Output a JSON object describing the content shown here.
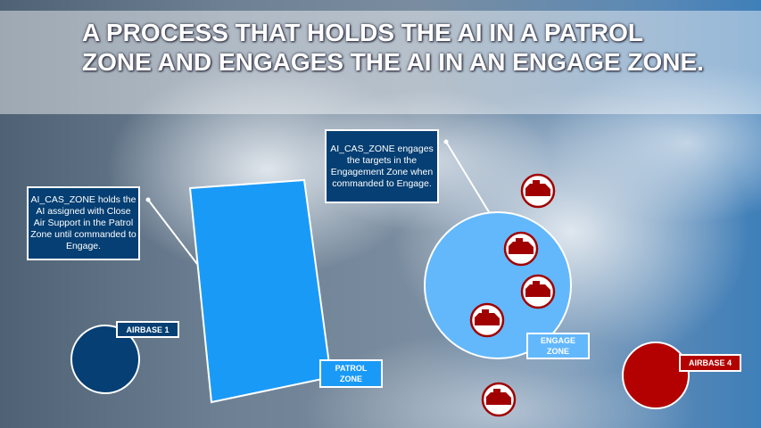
{
  "title": "A PROCESS THAT HOLDS THE AI IN A PATROL ZONE AND ENGAGES THE AI IN AN ENGAGE ZONE.",
  "callouts": {
    "patrol": "AI_CAS_ZONE holds the AI assigned with Close Air Support in the Patrol Zone until commanded to Engage.",
    "engage": "AI_CAS_ZONE engages the targets in the Engagement Zone when commanded to Engage."
  },
  "labels": {
    "airbase1": "AIRBASE 1",
    "patrol_zone": "PATROL ZONE",
    "engage_zone": "ENGAGE ZONE",
    "airbase4": "AIRBASE 4"
  },
  "colors": {
    "patrol_zone": "#1a9af7",
    "engage_zone": "#63b8fc",
    "airbase1": "#053f73",
    "airbase4": "#b30000",
    "callout": "#053f73",
    "target": "#a00000"
  },
  "targets": {
    "icon": "tank-icon"
  }
}
